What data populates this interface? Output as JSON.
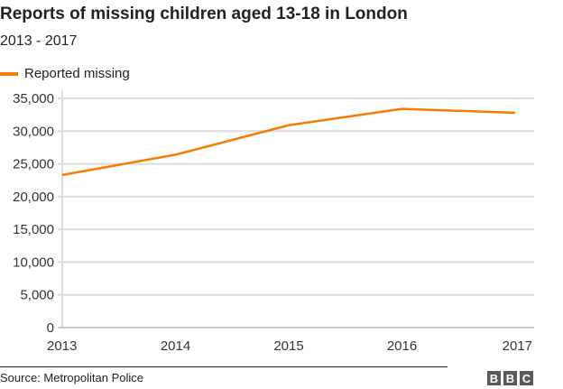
{
  "title": "Reports of missing children aged 13-18 in London",
  "subtitle": "2013 - 2017",
  "legend": {
    "label": "Reported missing",
    "color": "#f57c00"
  },
  "yticks": [
    "35,000",
    "30,000",
    "25,000",
    "20,000",
    "15,000",
    "10,000",
    "5,000",
    "0"
  ],
  "xticks": [
    "2013",
    "2014",
    "2015",
    "2016",
    "2017"
  ],
  "footer": {
    "source": "Source: Metropolitan Police",
    "logo": [
      "B",
      "B",
      "C"
    ]
  },
  "chart_data": {
    "type": "line",
    "title": "Reports of missing children aged 13-18 in London",
    "subtitle": "2013 - 2017",
    "xlabel": "",
    "ylabel": "",
    "x": [
      "2013",
      "2014",
      "2015",
      "2016",
      "2017"
    ],
    "series": [
      {
        "name": "Reported missing",
        "color": "#f57c00",
        "values": [
          23300,
          26400,
          30900,
          33400,
          32800
        ]
      }
    ],
    "ylim": [
      0,
      35000
    ],
    "ytick_step": 5000,
    "grid": true,
    "legend_position": "top-left",
    "source": "Metropolitan Police"
  }
}
